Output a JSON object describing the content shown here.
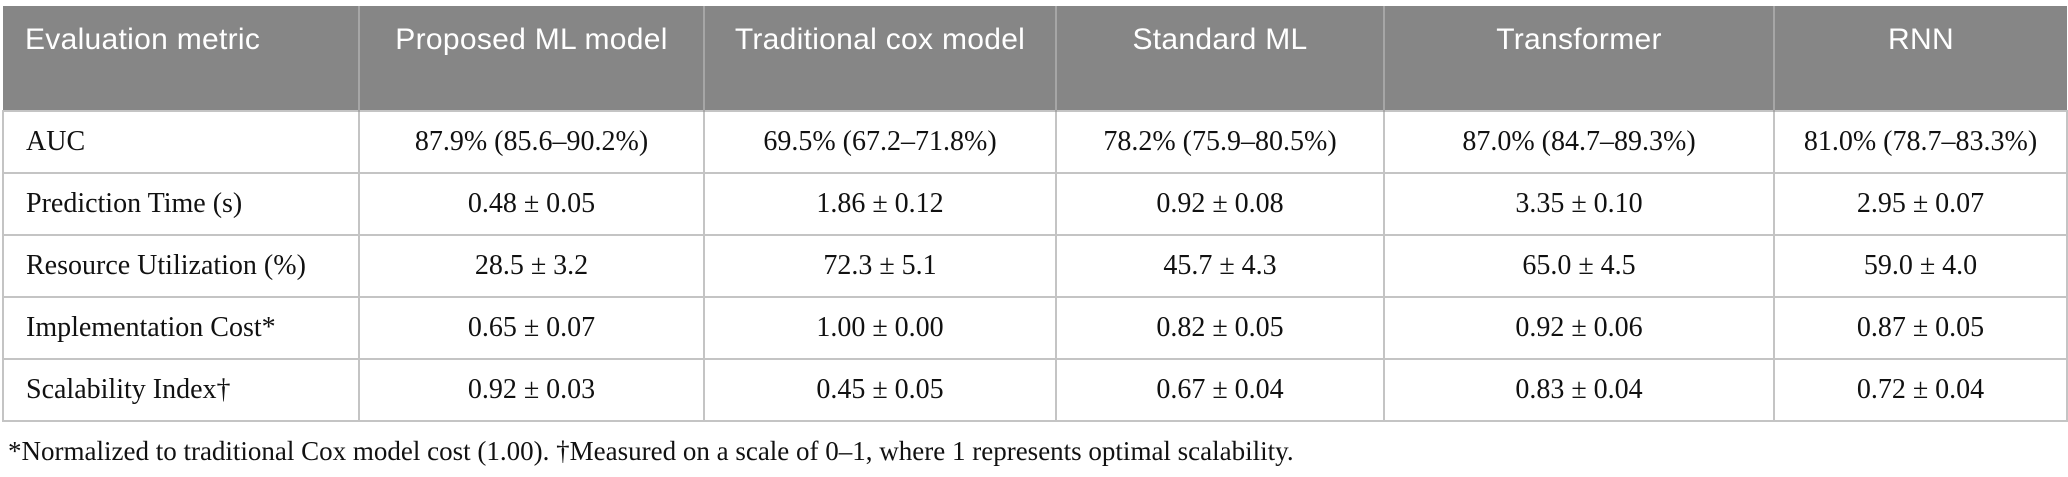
{
  "table": {
    "columns": [
      {
        "label": "Evaluation metric"
      },
      {
        "label": "Proposed ML model"
      },
      {
        "label": "Traditional cox model"
      },
      {
        "label": "Standard ML"
      },
      {
        "label": "Transformer"
      },
      {
        "label": "RNN"
      }
    ],
    "rows": [
      {
        "metric": "AUC",
        "values": [
          "87.9% (85.6–90.2%)",
          "69.5% (67.2–71.8%)",
          "78.2% (75.9–80.5%)",
          "87.0% (84.7–89.3%)",
          "81.0% (78.7–83.3%)"
        ]
      },
      {
        "metric": "Prediction Time (s)",
        "values": [
          "0.48 ± 0.05",
          "1.86 ± 0.12",
          "0.92 ± 0.08",
          "3.35 ± 0.10",
          "2.95 ± 0.07"
        ]
      },
      {
        "metric": "Resource Utilization (%)",
        "values": [
          "28.5 ± 3.2",
          "72.3 ± 5.1",
          "45.7 ± 4.3",
          "65.0 ± 4.5",
          "59.0 ± 4.0"
        ]
      },
      {
        "metric": "Implementation Cost*",
        "values": [
          "0.65 ± 0.07",
          "1.00 ± 0.00",
          "0.82 ± 0.05",
          "0.92 ± 0.06",
          "0.87 ± 0.05"
        ]
      },
      {
        "metric": "Scalability Index†",
        "values": [
          "0.92 ± 0.03",
          "0.45 ± 0.05",
          "0.67 ± 0.04",
          "0.83 ± 0.04",
          "0.72 ± 0.04"
        ]
      }
    ],
    "footnote": "*Normalized to traditional Cox model cost (1.00). †Measured on a scale of 0–1, where 1 represents optimal scalability."
  },
  "colors": {
    "header_background": "#868686",
    "header_text": "#ffffff",
    "header_divider": "#a6a6a6",
    "body_border": "#c4c4c4",
    "body_text": "#111111"
  }
}
